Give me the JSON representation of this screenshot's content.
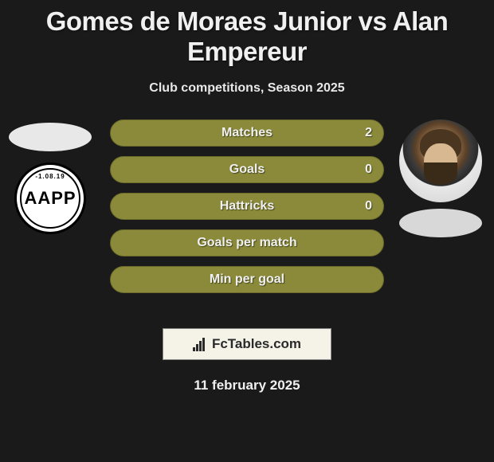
{
  "title": "Gomes de Moraes Junior vs Alan Empereur",
  "subtitle": "Club competitions, Season 2025",
  "date": "11 february 2025",
  "brand": "FcTables.com",
  "club_badge_text_top": "-1.08.19",
  "club_badge_center": "AAPP",
  "colors": {
    "background": "#1a1a1a",
    "bar_fill": "#8a8a3a",
    "bar_border": "#6a6a2a",
    "oval_left": "#e8e8e8",
    "oval_right": "#d8d8d8",
    "brand_box_bg": "#f5f2e8",
    "text": "#f0f0f0"
  },
  "stats": [
    {
      "label": "Matches",
      "value_right": "2"
    },
    {
      "label": "Goals",
      "value_right": "0"
    },
    {
      "label": "Hattricks",
      "value_right": "0"
    },
    {
      "label": "Goals per match",
      "value_right": ""
    },
    {
      "label": "Min per goal",
      "value_right": ""
    }
  ]
}
